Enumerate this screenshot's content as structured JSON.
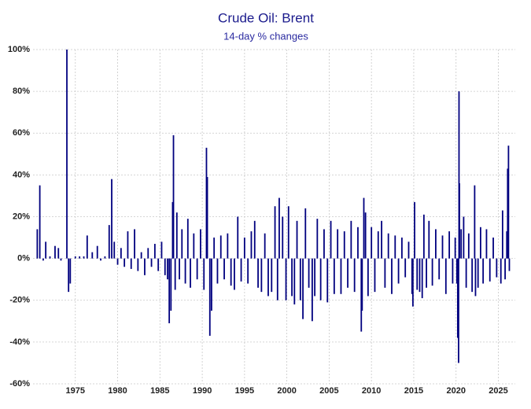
{
  "chart_data": {
    "type": "bar",
    "title": "Crude Oil: Brent",
    "subtitle": "14-day % changes",
    "color": "#00007f",
    "grid": true,
    "xlim": [
      1970,
      2027
    ],
    "xticks": [
      1975,
      1980,
      1985,
      1990,
      1995,
      2000,
      2005,
      2010,
      2015,
      2020,
      2025
    ],
    "ylim": [
      -60,
      100
    ],
    "yticks": [
      {
        "value": -60,
        "label": "-60%"
      },
      {
        "value": -40,
        "label": "-40%"
      },
      {
        "value": -20,
        "label": "-20%"
      },
      {
        "value": 0,
        "label": "0%"
      },
      {
        "value": 20,
        "label": "20%"
      },
      {
        "value": 40,
        "label": "40%"
      },
      {
        "value": 60,
        "label": "60%"
      },
      {
        "value": 80,
        "label": "80%"
      },
      {
        "value": 100,
        "label": "100%"
      }
    ],
    "x": [
      1970.5,
      1970.8,
      1971.2,
      1971.5,
      1972,
      1972.6,
      1973,
      1973.3,
      1974,
      1974.2,
      1974.4,
      1975,
      1975.5,
      1976,
      1976.4,
      1977,
      1977.6,
      1978,
      1978.5,
      1979,
      1979.3,
      1979.6,
      1980,
      1980.4,
      1980.8,
      1981.2,
      1981.6,
      1982,
      1982.4,
      1982.8,
      1983.2,
      1983.6,
      1984,
      1984.4,
      1984.8,
      1985.2,
      1985.6,
      1985.9,
      1986.1,
      1986.3,
      1986.5,
      1986.6,
      1986.8,
      1987,
      1987.3,
      1987.6,
      1988,
      1988.3,
      1988.6,
      1989,
      1989.4,
      1989.8,
      1990.2,
      1990.5,
      1990.6,
      1990.9,
      1991.1,
      1991.4,
      1991.8,
      1992.2,
      1992.6,
      1993,
      1993.4,
      1993.8,
      1994.2,
      1994.6,
      1995,
      1995.4,
      1995.8,
      1996.2,
      1996.6,
      1997,
      1997.4,
      1997.8,
      1998.2,
      1998.6,
      1998.9,
      1999.1,
      1999.5,
      1999.9,
      2000.2,
      2000.6,
      2000.9,
      2001.2,
      2001.6,
      2001.9,
      2002.2,
      2002.6,
      2003,
      2003.3,
      2003.6,
      2004,
      2004.4,
      2004.8,
      2005.2,
      2005.6,
      2006,
      2006.4,
      2006.8,
      2007.2,
      2007.6,
      2008,
      2008.4,
      2008.8,
      2008.9,
      2009.1,
      2009.3,
      2009.6,
      2010,
      2010.4,
      2010.8,
      2011.2,
      2011.6,
      2012,
      2012.4,
      2012.8,
      2013.2,
      2013.6,
      2014,
      2014.4,
      2014.8,
      2014.9,
      2015.1,
      2015.4,
      2015.7,
      2016,
      2016.2,
      2016.5,
      2016.8,
      2017.2,
      2017.6,
      2018,
      2018.4,
      2018.8,
      2019.2,
      2019.6,
      2019.9,
      2020.1,
      2020.2,
      2020.3,
      2020.35,
      2020.4,
      2020.6,
      2020.9,
      2021.2,
      2021.5,
      2021.9,
      2022.2,
      2022.3,
      2022.6,
      2022.9,
      2023.2,
      2023.6,
      2024,
      2024.4,
      2024.8,
      2025.3,
      2025.5,
      2025.8,
      2026,
      2026.1,
      2026.2,
      2026.3
    ],
    "values": [
      14,
      35,
      -1,
      8,
      1,
      6,
      5,
      -1,
      100,
      -16,
      -12,
      1,
      1,
      1,
      11,
      3,
      6,
      -1,
      1,
      16,
      38,
      8,
      -3,
      5,
      -4,
      13,
      -5,
      14,
      -6,
      3,
      -8,
      5,
      -4,
      7,
      -6,
      8,
      -8,
      -10,
      -31,
      -25,
      27,
      59,
      -15,
      22,
      -10,
      14,
      -12,
      19,
      -14,
      12,
      -10,
      14,
      -15,
      53,
      39,
      -37,
      -25,
      10,
      -12,
      11,
      -10,
      12,
      -13,
      -15,
      20,
      -11,
      10,
      -12,
      13,
      18,
      -14,
      -16,
      12,
      -18,
      -16,
      25,
      -20,
      29,
      20,
      -20,
      25,
      -18,
      -22,
      18,
      -20,
      -29,
      24,
      -14,
      -30,
      -18,
      19,
      -20,
      14,
      -21,
      18,
      -17,
      14,
      -17,
      13,
      -14,
      18,
      -16,
      15,
      -35,
      -25,
      29,
      22,
      -18,
      15,
      -16,
      13,
      18,
      -14,
      12,
      -17,
      11,
      -12,
      10,
      -9,
      8,
      -17,
      -23,
      27,
      -15,
      -16,
      -19,
      21,
      -14,
      18,
      -13,
      14,
      -10,
      11,
      -17,
      13,
      -12,
      10,
      -12,
      -38,
      -50,
      80,
      36,
      14,
      20,
      -14,
      12,
      -16,
      35,
      -18,
      -14,
      15,
      -12,
      14,
      -11,
      10,
      -9,
      -12,
      23,
      -10,
      13,
      43,
      54,
      -6
    ]
  }
}
